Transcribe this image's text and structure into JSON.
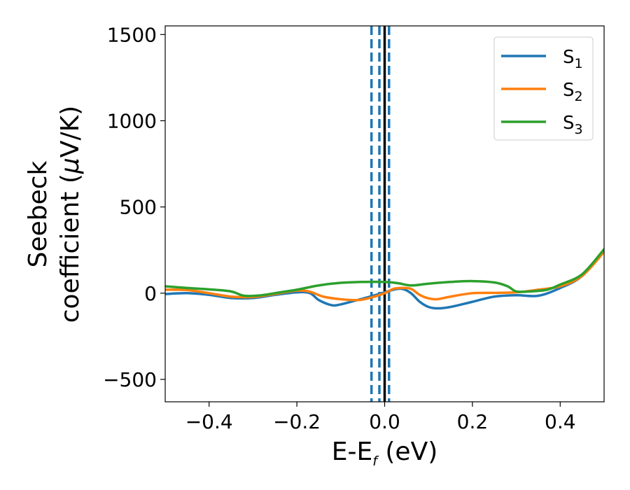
{
  "chart_data": {
    "type": "line",
    "xlabel": "E-E",
    "xlabel_sub": "f",
    "xlabel_unit": " (eV)",
    "ylabel_line1": "Seebeck",
    "ylabel_line2": "coefficient  (",
    "ylabel_mu": "μ",
    "ylabel_unit_end": "V/K)",
    "xlim": [
      -0.5,
      0.5
    ],
    "ylim": [
      -630,
      1550
    ],
    "xticks": [
      -0.4,
      -0.2,
      0.0,
      0.2,
      0.4
    ],
    "xtick_labels": [
      "−0.4",
      "−0.2",
      "0.0",
      "0.2",
      "0.4"
    ],
    "yticks": [
      -500,
      0,
      500,
      1000,
      1500
    ],
    "ytick_labels": [
      "−500",
      "0",
      "500",
      "1000",
      "1500"
    ],
    "legend_placement": "top-right",
    "grid": false,
    "vlines": [
      {
        "x": -0.03,
        "style": "dashed",
        "color": "#1f77b4"
      },
      {
        "x": -0.012,
        "style": "dashed",
        "color": "#1f77b4"
      },
      {
        "x": 0.01,
        "style": "dashed",
        "color": "#1f77b4"
      },
      {
        "x": 0.0,
        "style": "solid",
        "color": "#000000"
      }
    ],
    "series": [
      {
        "name": "S",
        "name_sub": "1",
        "color": "#1f77b4",
        "points": [
          [
            -0.5,
            -5
          ],
          [
            -0.45,
            0
          ],
          [
            -0.4,
            -10
          ],
          [
            -0.35,
            -28
          ],
          [
            -0.3,
            -28
          ],
          [
            -0.25,
            -10
          ],
          [
            -0.2,
            5
          ],
          [
            -0.17,
            0
          ],
          [
            -0.15,
            -40
          ],
          [
            -0.12,
            -70
          ],
          [
            -0.1,
            -65
          ],
          [
            -0.07,
            -45
          ],
          [
            -0.04,
            -25
          ],
          [
            -0.02,
            -10
          ],
          [
            0.0,
            5
          ],
          [
            0.02,
            20
          ],
          [
            0.04,
            25
          ],
          [
            0.06,
            0
          ],
          [
            0.08,
            -50
          ],
          [
            0.1,
            -80
          ],
          [
            0.12,
            -88
          ],
          [
            0.15,
            -80
          ],
          [
            0.2,
            -50
          ],
          [
            0.25,
            -20
          ],
          [
            0.3,
            -12
          ],
          [
            0.35,
            -15
          ],
          [
            0.4,
            30
          ],
          [
            0.45,
            100
          ],
          [
            0.5,
            250
          ]
        ]
      },
      {
        "name": "S",
        "name_sub": "2",
        "color": "#ff7f0e",
        "points": [
          [
            -0.5,
            20
          ],
          [
            -0.45,
            18
          ],
          [
            -0.4,
            0
          ],
          [
            -0.35,
            -20
          ],
          [
            -0.3,
            -22
          ],
          [
            -0.25,
            -5
          ],
          [
            -0.2,
            15
          ],
          [
            -0.17,
            8
          ],
          [
            -0.14,
            -20
          ],
          [
            -0.1,
            -35
          ],
          [
            -0.06,
            -40
          ],
          [
            -0.03,
            -25
          ],
          [
            0.0,
            0
          ],
          [
            0.02,
            25
          ],
          [
            0.04,
            30
          ],
          [
            0.06,
            25
          ],
          [
            0.08,
            -10
          ],
          [
            0.1,
            -30
          ],
          [
            0.12,
            -35
          ],
          [
            0.15,
            -20
          ],
          [
            0.2,
            0
          ],
          [
            0.25,
            2
          ],
          [
            0.3,
            5
          ],
          [
            0.35,
            20
          ],
          [
            0.4,
            40
          ],
          [
            0.45,
            100
          ],
          [
            0.5,
            240
          ]
        ]
      },
      {
        "name": "S",
        "name_sub": "3",
        "color": "#2ca02c",
        "points": [
          [
            -0.5,
            40
          ],
          [
            -0.45,
            30
          ],
          [
            -0.4,
            22
          ],
          [
            -0.35,
            10
          ],
          [
            -0.32,
            -15
          ],
          [
            -0.28,
            -12
          ],
          [
            -0.25,
            0
          ],
          [
            -0.2,
            20
          ],
          [
            -0.15,
            45
          ],
          [
            -0.1,
            60
          ],
          [
            -0.05,
            65
          ],
          [
            0.0,
            65
          ],
          [
            0.03,
            58
          ],
          [
            0.06,
            45
          ],
          [
            0.1,
            55
          ],
          [
            0.15,
            65
          ],
          [
            0.2,
            70
          ],
          [
            0.25,
            62
          ],
          [
            0.28,
            40
          ],
          [
            0.3,
            10
          ],
          [
            0.33,
            10
          ],
          [
            0.37,
            20
          ],
          [
            0.4,
            50
          ],
          [
            0.45,
            110
          ],
          [
            0.5,
            255
          ]
        ]
      }
    ]
  }
}
